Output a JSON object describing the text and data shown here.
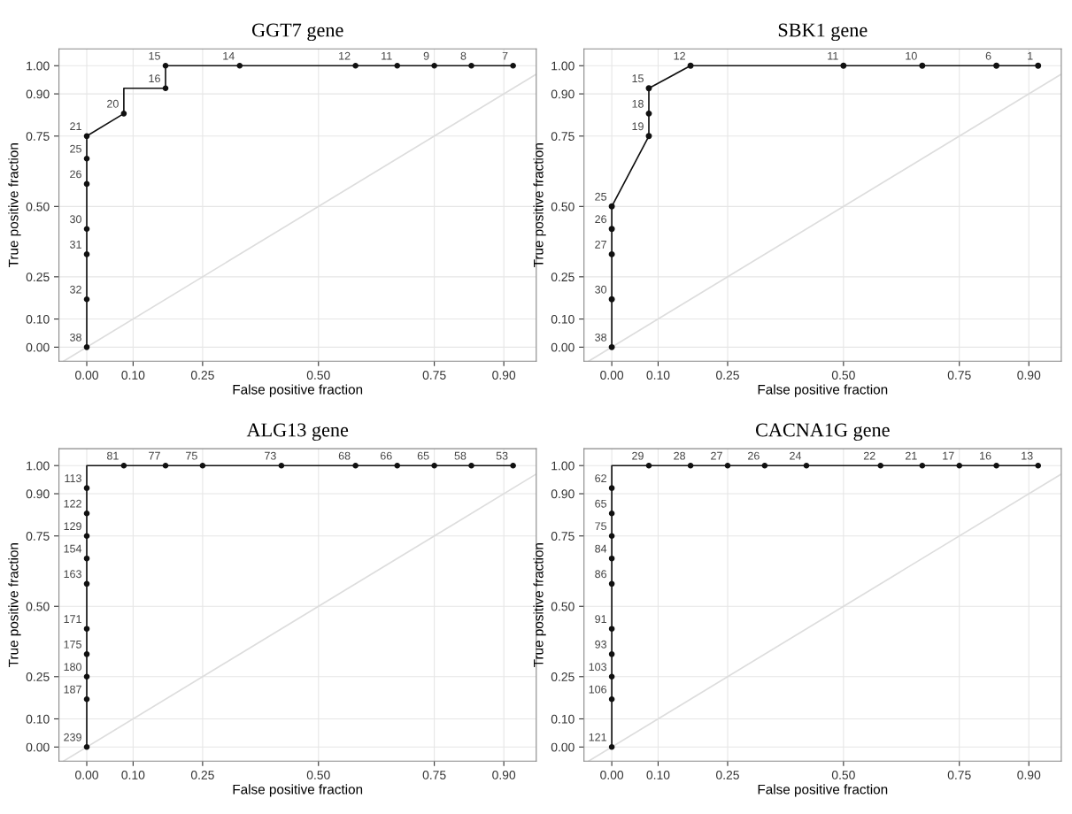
{
  "chart_data": [
    {
      "type": "line",
      "title": "GGT7 gene",
      "xlabel": "False positive fraction",
      "ylabel": "True positive fraction",
      "xlim": [
        -0.06,
        0.97
      ],
      "ylim": [
        -0.05,
        1.06
      ],
      "xticks": [
        {
          "value": 0,
          "label": "0.00"
        },
        {
          "value": 0.1,
          "label": "0.10"
        },
        {
          "value": 0.25,
          "label": "0.25"
        },
        {
          "value": 0.5,
          "label": "0.50"
        },
        {
          "value": 0.75,
          "label": "0.75"
        },
        {
          "value": 0.9,
          "label": "0.90"
        }
      ],
      "yticks": [
        {
          "value": 0,
          "label": "0.00"
        },
        {
          "value": 0.1,
          "label": "0.10"
        },
        {
          "value": 0.25,
          "label": "0.25"
        },
        {
          "value": 0.5,
          "label": "0.50"
        },
        {
          "value": 0.75,
          "label": "0.75"
        },
        {
          "value": 0.9,
          "label": "0.90"
        },
        {
          "value": 1,
          "label": "1.00"
        }
      ],
      "grid": true,
      "series": [
        {
          "color": "#dddddd",
          "marker": "none",
          "x": [
            -0.05,
            0.97
          ],
          "values": [
            -0.05,
            0.97
          ]
        },
        {
          "color": "#111111",
          "marker": "none",
          "x": [
            0,
            0,
            0,
            0,
            0,
            0,
            0,
            0.08,
            0.08,
            0.17,
            0.17,
            0.33,
            0.58,
            0.67,
            0.75,
            0.83,
            0.92
          ],
          "values": [
            0,
            0.17,
            0.33,
            0.42,
            0.58,
            0.67,
            0.75,
            0.83,
            0.92,
            0.92,
            1,
            1,
            1,
            1,
            1,
            1,
            1
          ]
        },
        {
          "type": "scatter",
          "color": "#111111",
          "marker": "circle",
          "x": [
            0,
            0,
            0,
            0,
            0,
            0,
            0,
            0.08,
            0.17,
            0.17,
            0.33,
            0.58,
            0.67,
            0.75,
            0.83,
            0.92
          ],
          "values": [
            0,
            0.17,
            0.33,
            0.42,
            0.58,
            0.67,
            0.75,
            0.83,
            0.92,
            1,
            1,
            1,
            1,
            1,
            1,
            1
          ]
        }
      ],
      "annotations": [
        {
          "text": "38",
          "x": 0,
          "y": 0
        },
        {
          "text": "32",
          "x": 0,
          "y": 0.17
        },
        {
          "text": "31",
          "x": 0,
          "y": 0.33
        },
        {
          "text": "30",
          "x": 0,
          "y": 0.42
        },
        {
          "text": "26",
          "x": 0,
          "y": 0.58
        },
        {
          "text": "25",
          "x": 0,
          "y": 0.67
        },
        {
          "text": "21",
          "x": 0,
          "y": 0.75
        },
        {
          "text": "20",
          "x": 0.08,
          "y": 0.83
        },
        {
          "text": "16",
          "x": 0.17,
          "y": 0.92
        },
        {
          "text": "15",
          "x": 0.17,
          "y": 1
        },
        {
          "text": "14",
          "x": 0.33,
          "y": 1
        },
        {
          "text": "12",
          "x": 0.58,
          "y": 1
        },
        {
          "text": "11",
          "x": 0.67,
          "y": 1
        },
        {
          "text": "9",
          "x": 0.75,
          "y": 1
        },
        {
          "text": "8",
          "x": 0.83,
          "y": 1
        },
        {
          "text": "7",
          "x": 0.92,
          "y": 1
        }
      ]
    },
    {
      "type": "line",
      "title": "SBK1 gene",
      "xlabel": "False positive fraction",
      "ylabel": "True positive fraction",
      "xlim": [
        -0.06,
        0.97
      ],
      "ylim": [
        -0.05,
        1.06
      ],
      "xticks": [
        {
          "value": 0,
          "label": "0.00"
        },
        {
          "value": 0.1,
          "label": "0.10"
        },
        {
          "value": 0.25,
          "label": "0.25"
        },
        {
          "value": 0.5,
          "label": "0.50"
        },
        {
          "value": 0.75,
          "label": "0.75"
        },
        {
          "value": 0.9,
          "label": "0.90"
        }
      ],
      "yticks": [
        {
          "value": 0,
          "label": "0.00"
        },
        {
          "value": 0.1,
          "label": "0.10"
        },
        {
          "value": 0.25,
          "label": "0.25"
        },
        {
          "value": 0.5,
          "label": "0.50"
        },
        {
          "value": 0.75,
          "label": "0.75"
        },
        {
          "value": 0.9,
          "label": "0.90"
        },
        {
          "value": 1,
          "label": "1.00"
        }
      ],
      "grid": true,
      "series": [
        {
          "color": "#dddddd",
          "marker": "none",
          "x": [
            -0.05,
            0.97
          ],
          "values": [
            -0.05,
            0.97
          ]
        },
        {
          "color": "#111111",
          "marker": "circle",
          "x": [
            0,
            0,
            0,
            0,
            0,
            0.08,
            0.08,
            0.08,
            0.17,
            0.5,
            0.67,
            0.83,
            0.92
          ],
          "values": [
            0,
            0.17,
            0.33,
            0.42,
            0.5,
            0.75,
            0.83,
            0.92,
            1,
            1,
            1,
            1,
            1
          ]
        }
      ],
      "annotations": [
        {
          "text": "38",
          "x": 0,
          "y": 0
        },
        {
          "text": "30",
          "x": 0,
          "y": 0.17
        },
        {
          "text": "27",
          "x": 0,
          "y": 0.33
        },
        {
          "text": "26",
          "x": 0,
          "y": 0.42
        },
        {
          "text": "25",
          "x": 0,
          "y": 0.5
        },
        {
          "text": "19",
          "x": 0.08,
          "y": 0.75
        },
        {
          "text": "18",
          "x": 0.08,
          "y": 0.83
        },
        {
          "text": "15",
          "x": 0.08,
          "y": 0.92
        },
        {
          "text": "12",
          "x": 0.17,
          "y": 1
        },
        {
          "text": "11",
          "x": 0.5,
          "y": 1
        },
        {
          "text": "10",
          "x": 0.67,
          "y": 1
        },
        {
          "text": "6",
          "x": 0.83,
          "y": 1
        },
        {
          "text": "1",
          "x": 0.92,
          "y": 1
        }
      ]
    },
    {
      "type": "line",
      "title": "ALG13 gene",
      "xlabel": "False positive fraction",
      "ylabel": "True positive fraction",
      "xlim": [
        -0.06,
        0.97
      ],
      "ylim": [
        -0.05,
        1.06
      ],
      "xticks": [
        {
          "value": 0,
          "label": "0.00"
        },
        {
          "value": 0.1,
          "label": "0.10"
        },
        {
          "value": 0.25,
          "label": "0.25"
        },
        {
          "value": 0.5,
          "label": "0.50"
        },
        {
          "value": 0.75,
          "label": "0.75"
        },
        {
          "value": 0.9,
          "label": "0.90"
        }
      ],
      "yticks": [
        {
          "value": 0,
          "label": "0.00"
        },
        {
          "value": 0.1,
          "label": "0.10"
        },
        {
          "value": 0.25,
          "label": "0.25"
        },
        {
          "value": 0.5,
          "label": "0.50"
        },
        {
          "value": 0.75,
          "label": "0.75"
        },
        {
          "value": 0.9,
          "label": "0.90"
        },
        {
          "value": 1,
          "label": "1.00"
        }
      ],
      "grid": true,
      "series": [
        {
          "color": "#dddddd",
          "marker": "none",
          "x": [
            -0.05,
            0.97
          ],
          "values": [
            -0.05,
            0.97
          ]
        },
        {
          "color": "#111111",
          "marker": "none",
          "x": [
            0,
            0,
            0,
            0,
            0,
            0,
            0,
            0,
            0,
            0,
            0,
            0.08,
            0.17,
            0.25,
            0.42,
            0.58,
            0.67,
            0.75,
            0.83,
            0.92
          ],
          "values": [
            0,
            0.17,
            0.25,
            0.33,
            0.42,
            0.58,
            0.67,
            0.75,
            0.83,
            0.92,
            1,
            1,
            1,
            1,
            1,
            1,
            1,
            1,
            1,
            1
          ]
        },
        {
          "type": "scatter",
          "color": "#111111",
          "marker": "circle",
          "x": [
            0,
            0,
            0,
            0,
            0,
            0,
            0,
            0,
            0,
            0,
            0.08,
            0.17,
            0.25,
            0.42,
            0.58,
            0.67,
            0.75,
            0.83,
            0.92
          ],
          "values": [
            0,
            0.17,
            0.25,
            0.33,
            0.42,
            0.58,
            0.67,
            0.75,
            0.83,
            0.92,
            1,
            1,
            1,
            1,
            1,
            1,
            1,
            1,
            1
          ]
        }
      ],
      "annotations": [
        {
          "text": "239",
          "x": 0,
          "y": 0
        },
        {
          "text": "187",
          "x": 0,
          "y": 0.17
        },
        {
          "text": "180",
          "x": 0,
          "y": 0.25
        },
        {
          "text": "175",
          "x": 0,
          "y": 0.33
        },
        {
          "text": "171",
          "x": 0,
          "y": 0.42
        },
        {
          "text": "163",
          "x": 0,
          "y": 0.58
        },
        {
          "text": "154",
          "x": 0,
          "y": 0.67
        },
        {
          "text": "129",
          "x": 0,
          "y": 0.75
        },
        {
          "text": "122",
          "x": 0,
          "y": 0.83
        },
        {
          "text": "113",
          "x": 0,
          "y": 0.92
        },
        {
          "text": "81",
          "x": 0.08,
          "y": 1
        },
        {
          "text": "77",
          "x": 0.17,
          "y": 1
        },
        {
          "text": "75",
          "x": 0.25,
          "y": 1
        },
        {
          "text": "73",
          "x": 0.42,
          "y": 1
        },
        {
          "text": "68",
          "x": 0.58,
          "y": 1
        },
        {
          "text": "66",
          "x": 0.67,
          "y": 1
        },
        {
          "text": "65",
          "x": 0.75,
          "y": 1
        },
        {
          "text": "58",
          "x": 0.83,
          "y": 1
        },
        {
          "text": "53",
          "x": 0.92,
          "y": 1
        }
      ]
    },
    {
      "type": "line",
      "title": "CACNA1G gene",
      "xlabel": "False positive fraction",
      "ylabel": "True positive fraction",
      "xlim": [
        -0.06,
        0.97
      ],
      "ylim": [
        -0.05,
        1.06
      ],
      "xticks": [
        {
          "value": 0,
          "label": "0.00"
        },
        {
          "value": 0.1,
          "label": "0.10"
        },
        {
          "value": 0.25,
          "label": "0.25"
        },
        {
          "value": 0.5,
          "label": "0.50"
        },
        {
          "value": 0.75,
          "label": "0.75"
        },
        {
          "value": 0.9,
          "label": "0.90"
        }
      ],
      "yticks": [
        {
          "value": 0,
          "label": "0.00"
        },
        {
          "value": 0.1,
          "label": "0.10"
        },
        {
          "value": 0.25,
          "label": "0.25"
        },
        {
          "value": 0.5,
          "label": "0.50"
        },
        {
          "value": 0.75,
          "label": "0.75"
        },
        {
          "value": 0.9,
          "label": "0.90"
        },
        {
          "value": 1,
          "label": "1.00"
        }
      ],
      "grid": true,
      "series": [
        {
          "color": "#dddddd",
          "marker": "none",
          "x": [
            -0.05,
            0.97
          ],
          "values": [
            -0.05,
            0.97
          ]
        },
        {
          "color": "#111111",
          "marker": "none",
          "x": [
            0,
            0,
            0,
            0,
            0,
            0,
            0,
            0,
            0,
            0,
            0,
            0.08,
            0.17,
            0.25,
            0.33,
            0.42,
            0.58,
            0.67,
            0.75,
            0.83,
            0.92
          ],
          "values": [
            0,
            0.17,
            0.25,
            0.33,
            0.42,
            0.58,
            0.67,
            0.75,
            0.83,
            0.92,
            1,
            1,
            1,
            1,
            1,
            1,
            1,
            1,
            1,
            1,
            1
          ]
        },
        {
          "type": "scatter",
          "color": "#111111",
          "marker": "circle",
          "x": [
            0,
            0,
            0,
            0,
            0,
            0,
            0,
            0,
            0,
            0,
            0.08,
            0.17,
            0.25,
            0.33,
            0.42,
            0.58,
            0.67,
            0.75,
            0.83,
            0.92
          ],
          "values": [
            0,
            0.17,
            0.25,
            0.33,
            0.42,
            0.58,
            0.67,
            0.75,
            0.83,
            0.92,
            1,
            1,
            1,
            1,
            1,
            1,
            1,
            1,
            1,
            1
          ]
        }
      ],
      "annotations": [
        {
          "text": "121",
          "x": 0,
          "y": 0
        },
        {
          "text": "106",
          "x": 0,
          "y": 0.17
        },
        {
          "text": "103",
          "x": 0,
          "y": 0.25
        },
        {
          "text": "93",
          "x": 0,
          "y": 0.33
        },
        {
          "text": "91",
          "x": 0,
          "y": 0.42
        },
        {
          "text": "86",
          "x": 0,
          "y": 0.58
        },
        {
          "text": "84",
          "x": 0,
          "y": 0.67
        },
        {
          "text": "75",
          "x": 0,
          "y": 0.75
        },
        {
          "text": "65",
          "x": 0,
          "y": 0.83
        },
        {
          "text": "62",
          "x": 0,
          "y": 0.92
        },
        {
          "text": "29",
          "x": 0.08,
          "y": 1
        },
        {
          "text": "28",
          "x": 0.17,
          "y": 1
        },
        {
          "text": "27",
          "x": 0.25,
          "y": 1
        },
        {
          "text": "26",
          "x": 0.33,
          "y": 1
        },
        {
          "text": "24",
          "x": 0.42,
          "y": 1
        },
        {
          "text": "22",
          "x": 0.58,
          "y": 1
        },
        {
          "text": "21",
          "x": 0.67,
          "y": 1
        },
        {
          "text": "17",
          "x": 0.75,
          "y": 1
        },
        {
          "text": "16",
          "x": 0.83,
          "y": 1
        },
        {
          "text": "13",
          "x": 0.92,
          "y": 1
        }
      ]
    }
  ]
}
